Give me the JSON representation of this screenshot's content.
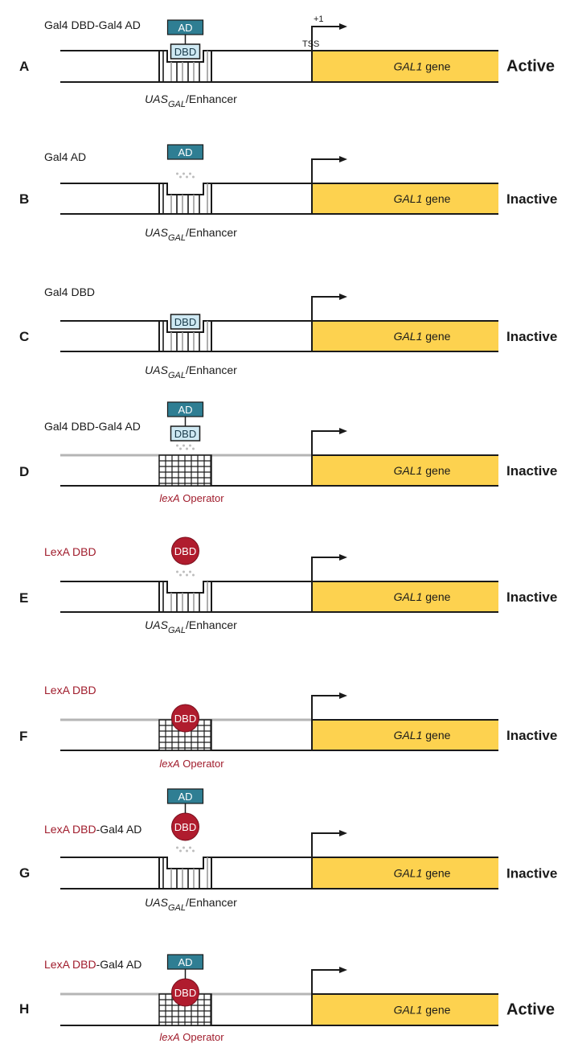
{
  "colors": {
    "gene_fill": "#fdd24f",
    "ad_fill": "#2f7e93",
    "gal4_dbd_fill": "#cfe9f3",
    "lexa_dbd_fill": "#b01c2e",
    "dna_line": "#1a1a1a",
    "lexa_operator_top_line": "#b5b5b5",
    "red_text": "#a01c2c"
  },
  "common": {
    "gene_name": "GAL1",
    "gene_word": "gene",
    "ad_label": "AD",
    "dbd_label": "DBD",
    "tss_label": "TSS",
    "plus_one_label": "+1",
    "uas_main": "UAS",
    "uas_sub": "GAL",
    "uas_rest": "/Enhancer",
    "lexa_italic": "lexA",
    "lexa_rest": " Operator"
  },
  "panels": [
    {
      "letter": "A",
      "protein": "Gal4 DBD-Gal4 AD",
      "status": "Active",
      "site": "uas",
      "dbd": "gal4",
      "ad": true,
      "bound": true
    },
    {
      "letter": "B",
      "protein": "Gal4 AD",
      "status": "Inactive",
      "site": "uas",
      "dbd": "none",
      "ad": true,
      "bound": false
    },
    {
      "letter": "C",
      "protein": "Gal4 DBD",
      "status": "Inactive",
      "site": "uas",
      "dbd": "gal4",
      "ad": false,
      "bound": true
    },
    {
      "letter": "D",
      "protein": "Gal4 DBD-Gal4 AD",
      "status": "Inactive",
      "site": "lexa",
      "dbd": "gal4",
      "ad": true,
      "bound": false
    },
    {
      "letter": "E",
      "protein": "LexA DBD",
      "status": "Inactive",
      "site": "uas",
      "dbd": "lexa",
      "ad": false,
      "bound": false
    },
    {
      "letter": "F",
      "protein": "LexA DBD",
      "status": "Inactive",
      "site": "lexa",
      "dbd": "lexa",
      "ad": false,
      "bound": true
    },
    {
      "letter": "G",
      "protein_red": "LexA DBD",
      "protein_black": "-Gal4 AD",
      "status": "Inactive",
      "site": "uas",
      "dbd": "lexa",
      "ad": true,
      "bound": false
    },
    {
      "letter": "H",
      "protein_red": "LexA DBD",
      "protein_black": "-Gal4 AD",
      "status": "Active",
      "site": "lexa",
      "dbd": "lexa",
      "ad": true,
      "bound": true
    }
  ]
}
